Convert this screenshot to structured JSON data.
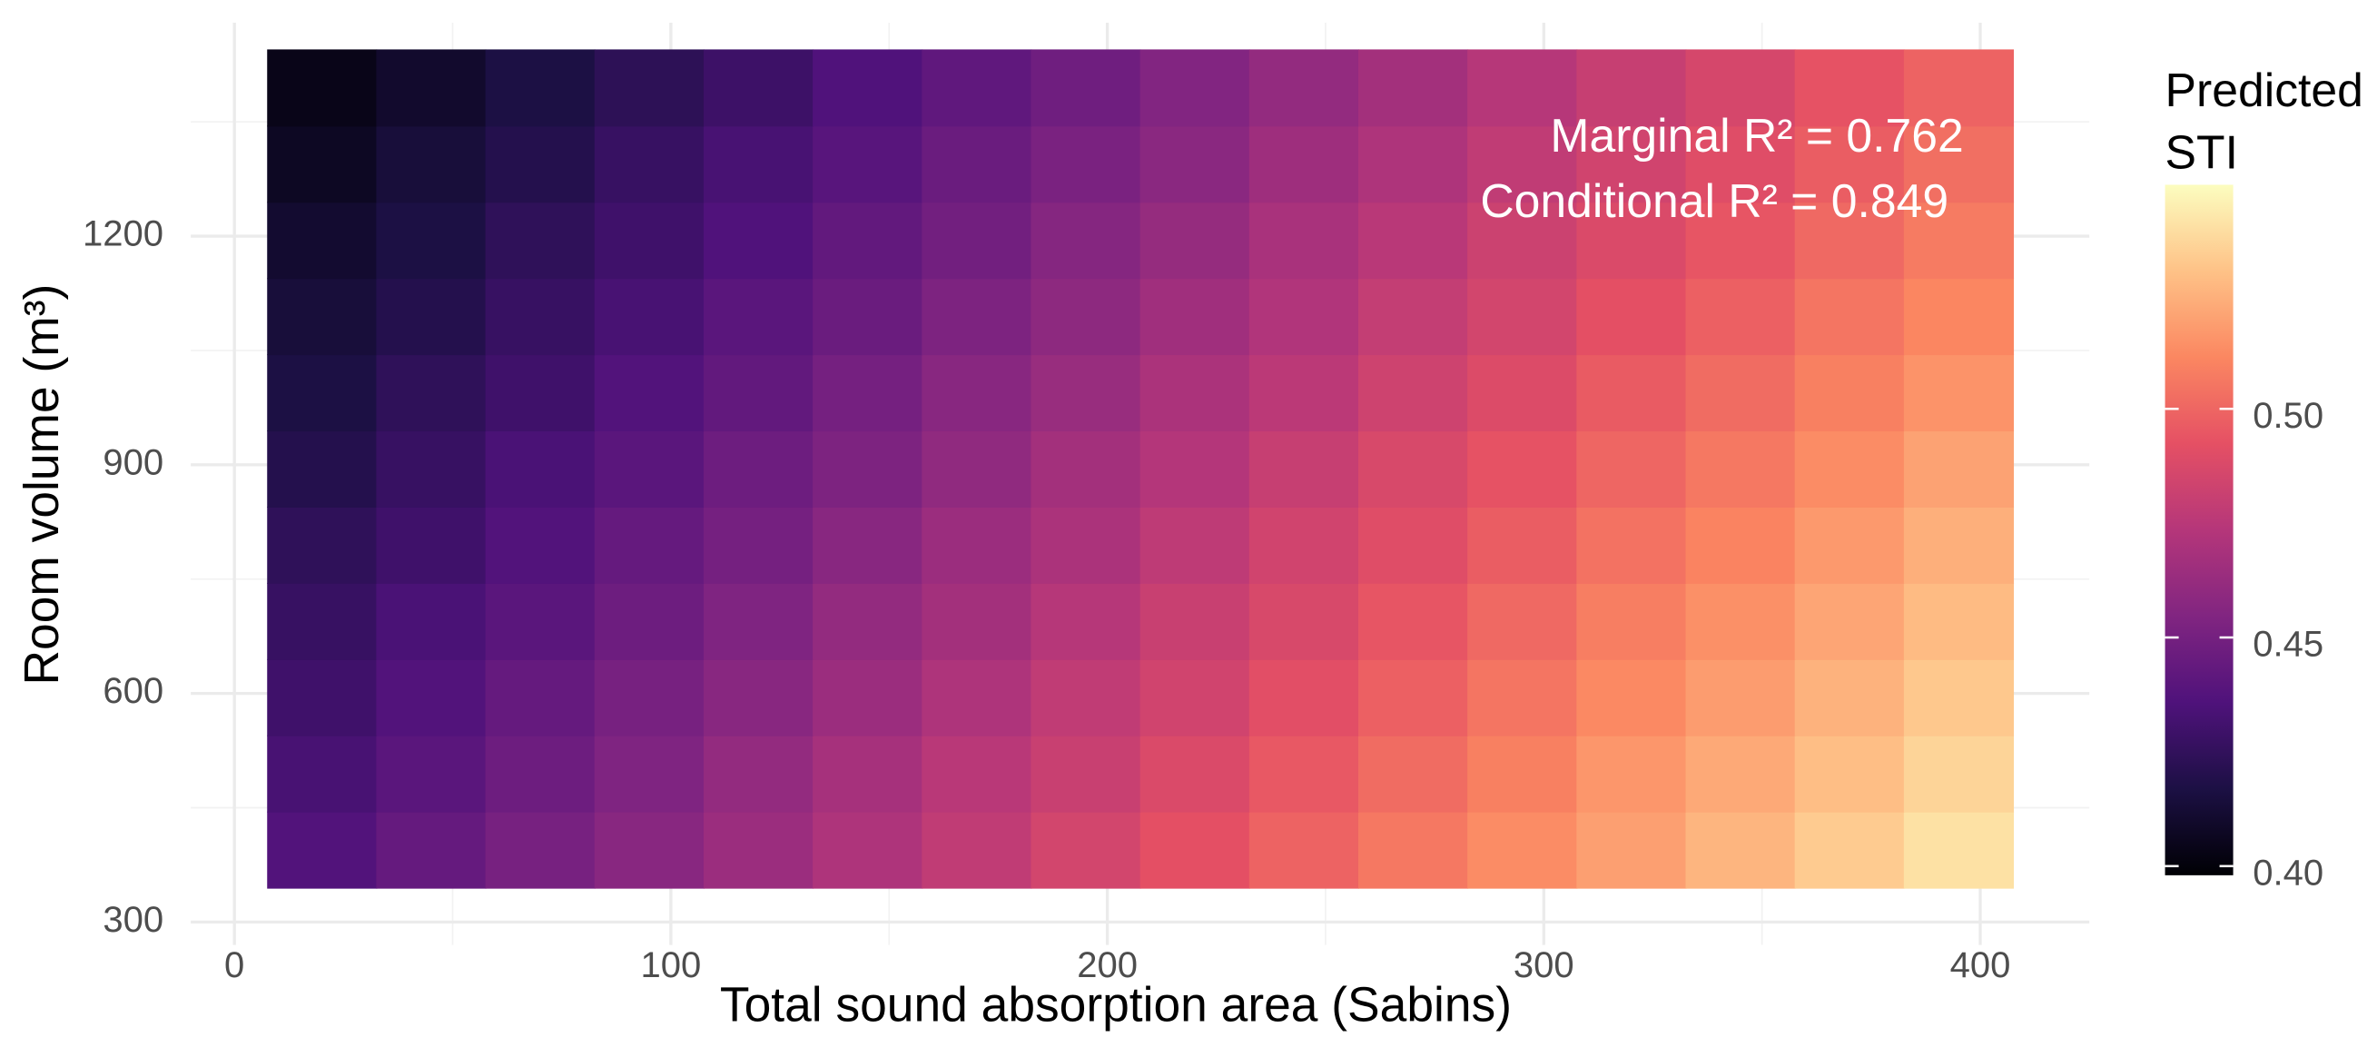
{
  "chart_data": {
    "type": "heatmap",
    "x_label": "Total sound absorption area (Sabins)",
    "y_label": "Room volume (m³)",
    "annotations": [
      "Marginal R² = 0.762",
      "Conditional R² = 0.849"
    ],
    "legend_title": [
      "Predicted",
      "STI"
    ],
    "x": [
      20,
      45,
      70,
      95,
      120,
      145,
      170,
      195,
      220,
      245,
      270,
      295,
      320,
      345,
      370,
      395
    ],
    "y": [
      395,
      495,
      595,
      695,
      795,
      895,
      995,
      1095,
      1195,
      1295,
      1395
    ],
    "z": [
      [
        0.437,
        0.444,
        0.451,
        0.457,
        0.464,
        0.471,
        0.478,
        0.485,
        0.492,
        0.499,
        0.506,
        0.513,
        0.519,
        0.526,
        0.533,
        0.54
      ],
      [
        0.433,
        0.44,
        0.447,
        0.454,
        0.461,
        0.468,
        0.475,
        0.481,
        0.488,
        0.495,
        0.502,
        0.509,
        0.516,
        0.522,
        0.529,
        0.536
      ],
      [
        0.43,
        0.437,
        0.444,
        0.451,
        0.457,
        0.464,
        0.471,
        0.478,
        0.484,
        0.491,
        0.498,
        0.505,
        0.512,
        0.518,
        0.525,
        0.532
      ],
      [
        0.427,
        0.434,
        0.44,
        0.447,
        0.454,
        0.461,
        0.467,
        0.474,
        0.481,
        0.487,
        0.494,
        0.501,
        0.508,
        0.514,
        0.521,
        0.528
      ],
      [
        0.424,
        0.43,
        0.437,
        0.444,
        0.45,
        0.457,
        0.464,
        0.47,
        0.477,
        0.484,
        0.49,
        0.497,
        0.504,
        0.51,
        0.517,
        0.524
      ],
      [
        0.42,
        0.427,
        0.434,
        0.44,
        0.447,
        0.453,
        0.46,
        0.467,
        0.473,
        0.48,
        0.487,
        0.493,
        0.5,
        0.506,
        0.513,
        0.52
      ],
      [
        0.417,
        0.424,
        0.43,
        0.437,
        0.443,
        0.45,
        0.457,
        0.463,
        0.47,
        0.476,
        0.483,
        0.489,
        0.496,
        0.502,
        0.509,
        0.515
      ],
      [
        0.414,
        0.42,
        0.427,
        0.433,
        0.44,
        0.446,
        0.453,
        0.459,
        0.466,
        0.472,
        0.479,
        0.485,
        0.492,
        0.498,
        0.505,
        0.511
      ],
      [
        0.411,
        0.417,
        0.424,
        0.43,
        0.436,
        0.443,
        0.449,
        0.456,
        0.462,
        0.469,
        0.475,
        0.482,
        0.488,
        0.494,
        0.501,
        0.507
      ],
      [
        0.407,
        0.414,
        0.42,
        0.427,
        0.433,
        0.439,
        0.446,
        0.452,
        0.458,
        0.465,
        0.471,
        0.478,
        0.484,
        0.49,
        0.497,
        0.503
      ],
      [
        0.404,
        0.41,
        0.417,
        0.423,
        0.429,
        0.436,
        0.442,
        0.448,
        0.455,
        0.461,
        0.467,
        0.474,
        0.48,
        0.486,
        0.493,
        0.499
      ]
    ],
    "xlim": [
      -10,
      425
    ],
    "ylim": [
      270,
      1480
    ],
    "xticks": [
      0,
      100,
      200,
      300,
      400
    ],
    "yticks": [
      300,
      600,
      900,
      1200
    ],
    "xminorticks": [
      50,
      150,
      250,
      350
    ],
    "yminorticks": [
      450,
      750,
      1050,
      1350
    ],
    "grid": true,
    "clim": [
      0.398,
      0.549
    ],
    "cticks": [
      {
        "value": 0.4,
        "label": "0.40"
      },
      0.45,
      {
        "value": 0.5,
        "label": "0.50"
      }
    ],
    "colormap": [
      "#000004",
      "#1c1044",
      "#4f127b",
      "#812581",
      "#b5367a",
      "#e55064",
      "#fb8761",
      "#fec287",
      "#fcfdbf"
    ],
    "legend_position": "right"
  }
}
